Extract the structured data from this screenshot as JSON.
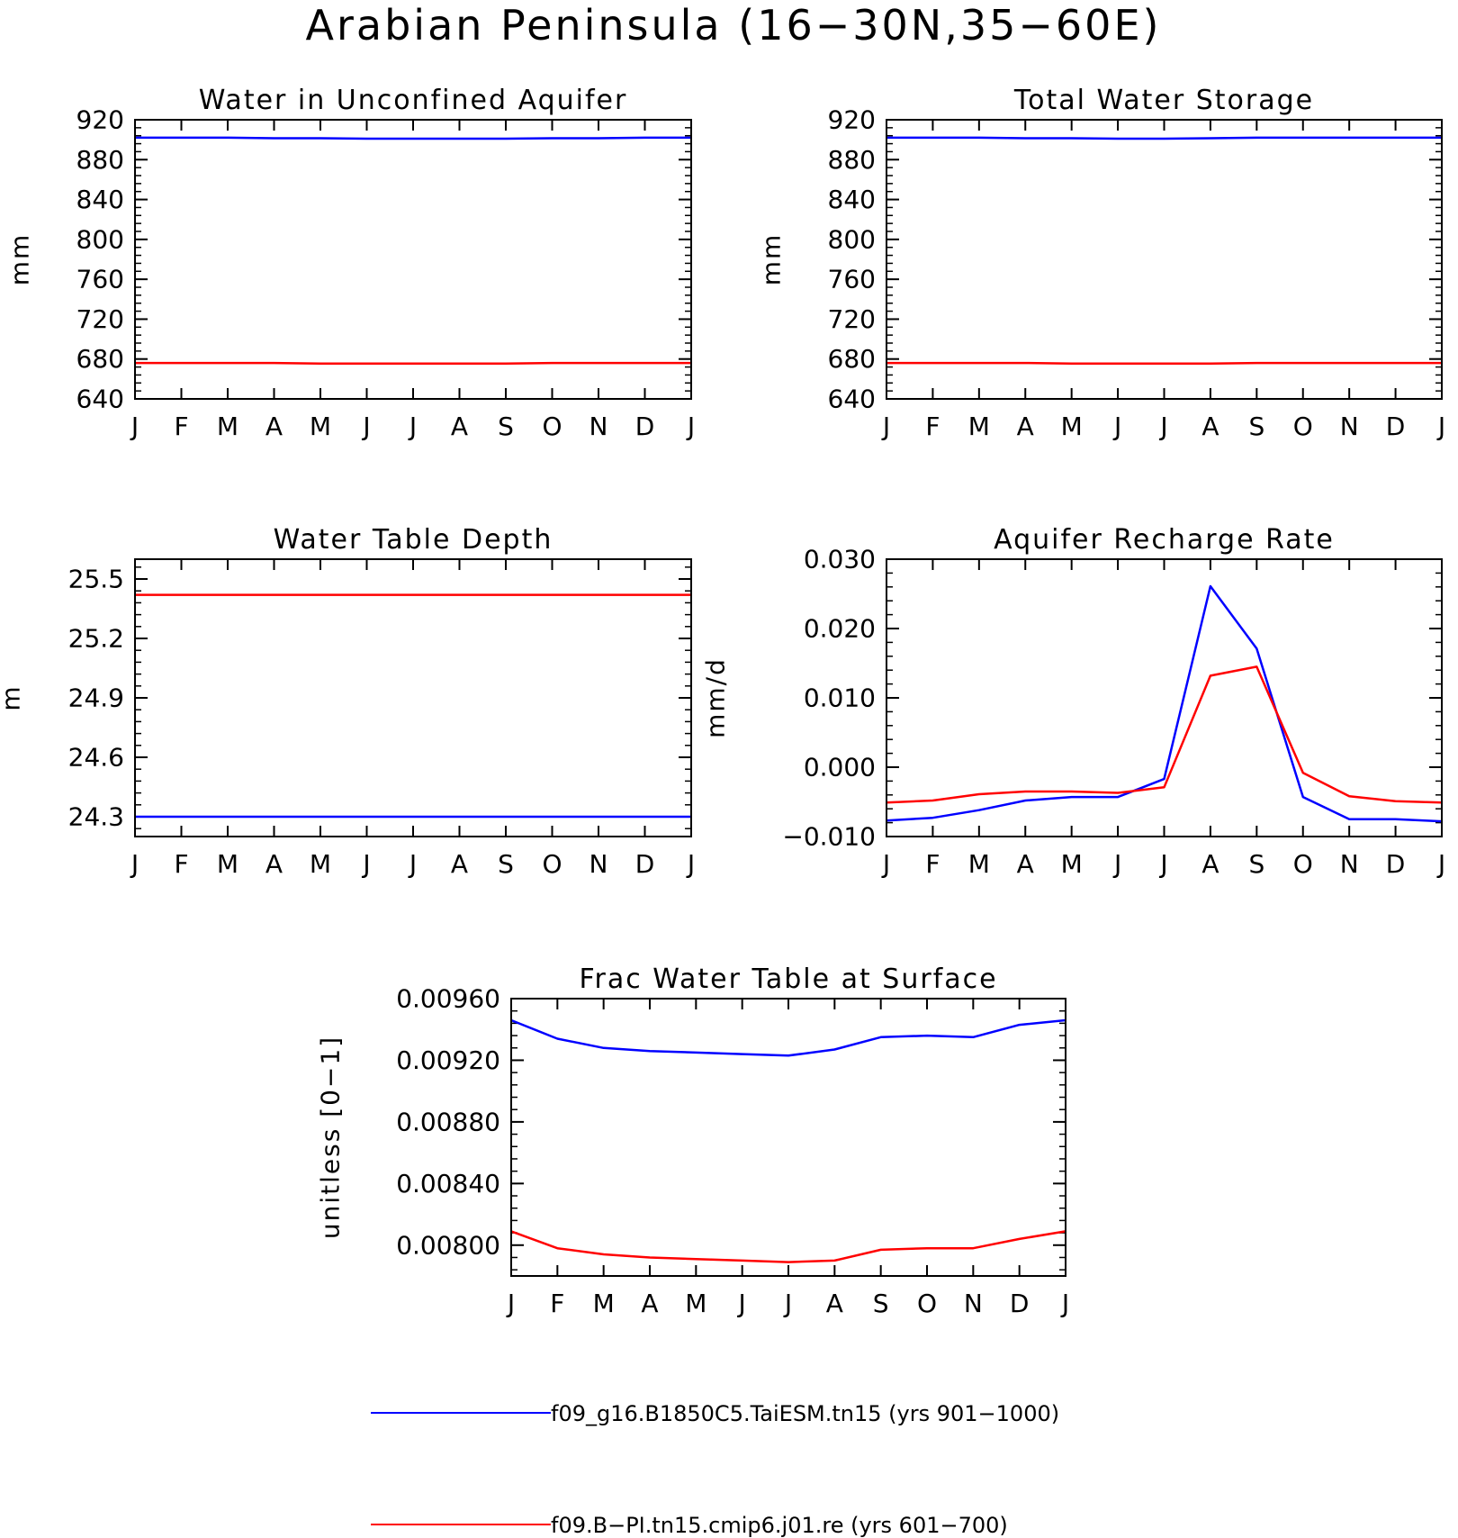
{
  "figure_title": "Arabian Peninsula (16−30N,35−60E)",
  "legend": [
    {
      "label": "f09_g16.B1850C5.TaiESM.tn15 (yrs 901−1000)",
      "color": "#0000ff"
    },
    {
      "label": "f09.B−PI.tn15.cmip6.j01.re (yrs 601−700)",
      "color": "#ff0000"
    }
  ],
  "chart_data": [
    {
      "type": "line",
      "title": "Water in Unconfined Aquifer",
      "ylabel": "mm",
      "xlabel": "",
      "categories": [
        "J",
        "F",
        "M",
        "A",
        "M",
        "J",
        "J",
        "A",
        "S",
        "O",
        "N",
        "D",
        "J"
      ],
      "ylim": [
        640,
        920
      ],
      "yticks": [
        640,
        680,
        720,
        760,
        800,
        840,
        880,
        920
      ],
      "ytick_labels": [
        "640",
        "680",
        "720",
        "760",
        "800",
        "840",
        "880",
        "920"
      ],
      "grid": false,
      "series": [
        {
          "color": "#0000ff",
          "values": [
            902,
            902,
            902,
            901.5,
            901.5,
            901,
            901,
            901,
            901,
            901.5,
            901.5,
            902,
            902
          ]
        },
        {
          "color": "#ff0000",
          "values": [
            676,
            676,
            676,
            676,
            675.5,
            675.5,
            675.5,
            675.5,
            675.5,
            676,
            676,
            676,
            676
          ]
        }
      ]
    },
    {
      "type": "line",
      "title": "Total Water Storage",
      "ylabel": "mm",
      "xlabel": "",
      "categories": [
        "J",
        "F",
        "M",
        "A",
        "M",
        "J",
        "J",
        "A",
        "S",
        "O",
        "N",
        "D",
        "J"
      ],
      "ylim": [
        640,
        920
      ],
      "yticks": [
        640,
        680,
        720,
        760,
        800,
        840,
        880,
        920
      ],
      "ytick_labels": [
        "640",
        "680",
        "720",
        "760",
        "800",
        "840",
        "880",
        "920"
      ],
      "grid": false,
      "series": [
        {
          "color": "#0000ff",
          "values": [
            902,
            902,
            902,
            901.5,
            901.5,
            901,
            901,
            901.5,
            902,
            902,
            902,
            902,
            902
          ]
        },
        {
          "color": "#ff0000",
          "values": [
            676,
            676,
            676,
            676,
            675.5,
            675.5,
            675.5,
            675.5,
            676,
            676,
            676,
            676,
            676
          ]
        }
      ]
    },
    {
      "type": "line",
      "title": "Water Table Depth",
      "ylabel": "m",
      "xlabel": "",
      "categories": [
        "J",
        "F",
        "M",
        "A",
        "M",
        "J",
        "J",
        "A",
        "S",
        "O",
        "N",
        "D",
        "J"
      ],
      "ylim": [
        24.2,
        25.6
      ],
      "yticks": [
        24.3,
        24.6,
        24.9,
        25.2,
        25.5
      ],
      "ytick_labels": [
        "24.3",
        "24.6",
        "24.9",
        "25.2",
        "25.5"
      ],
      "grid": false,
      "series": [
        {
          "color": "#ff0000",
          "values": [
            25.42,
            25.42,
            25.42,
            25.42,
            25.42,
            25.42,
            25.42,
            25.42,
            25.42,
            25.42,
            25.42,
            25.42,
            25.42
          ]
        },
        {
          "color": "#0000ff",
          "values": [
            24.3,
            24.3,
            24.3,
            24.3,
            24.3,
            24.3,
            24.3,
            24.3,
            24.3,
            24.3,
            24.3,
            24.3,
            24.3
          ]
        }
      ]
    },
    {
      "type": "line",
      "title": "Aquifer Recharge Rate",
      "ylabel": "mm/d",
      "xlabel": "",
      "categories": [
        "J",
        "F",
        "M",
        "A",
        "M",
        "J",
        "J",
        "A",
        "S",
        "O",
        "N",
        "D",
        "J"
      ],
      "ylim": [
        -0.01,
        0.03
      ],
      "yticks": [
        -0.01,
        0.0,
        0.01,
        0.02,
        0.03
      ],
      "ytick_labels": [
        "−0.010",
        "0.000",
        "0.010",
        "0.020",
        "0.030"
      ],
      "grid": false,
      "series": [
        {
          "color": "#0000ff",
          "values": [
            -0.0077,
            -0.0073,
            -0.0062,
            -0.0048,
            -0.0043,
            -0.0043,
            -0.0017,
            0.0261,
            0.0171,
            -0.0043,
            -0.0075,
            -0.0075,
            -0.0078
          ]
        },
        {
          "color": "#ff0000",
          "values": [
            -0.0051,
            -0.0048,
            -0.0039,
            -0.0035,
            -0.0035,
            -0.0037,
            -0.0029,
            0.0132,
            0.0145,
            -0.0008,
            -0.0042,
            -0.0049,
            -0.0051
          ]
        }
      ]
    },
    {
      "type": "line",
      "title": "Frac Water Table at Surface",
      "ylabel": "unitless [0−1]",
      "xlabel": "",
      "categories": [
        "J",
        "F",
        "M",
        "A",
        "M",
        "J",
        "J",
        "A",
        "S",
        "O",
        "N",
        "D",
        "J"
      ],
      "ylim": [
        0.0078,
        0.0096
      ],
      "yticks": [
        0.008,
        0.0084,
        0.0088,
        0.0092,
        0.0096
      ],
      "ytick_labels": [
        "0.00800",
        "0.00840",
        "0.00880",
        "0.00920",
        "0.00960"
      ],
      "grid": false,
      "series": [
        {
          "color": "#0000ff",
          "values": [
            0.00946,
            0.00934,
            0.00928,
            0.00926,
            0.00925,
            0.00924,
            0.00923,
            0.00927,
            0.00935,
            0.00936,
            0.00935,
            0.00943,
            0.00946
          ]
        },
        {
          "color": "#ff0000",
          "values": [
            0.00809,
            0.00798,
            0.00794,
            0.00792,
            0.00791,
            0.0079,
            0.00789,
            0.0079,
            0.00797,
            0.00798,
            0.00798,
            0.00804,
            0.00809
          ]
        }
      ]
    }
  ]
}
